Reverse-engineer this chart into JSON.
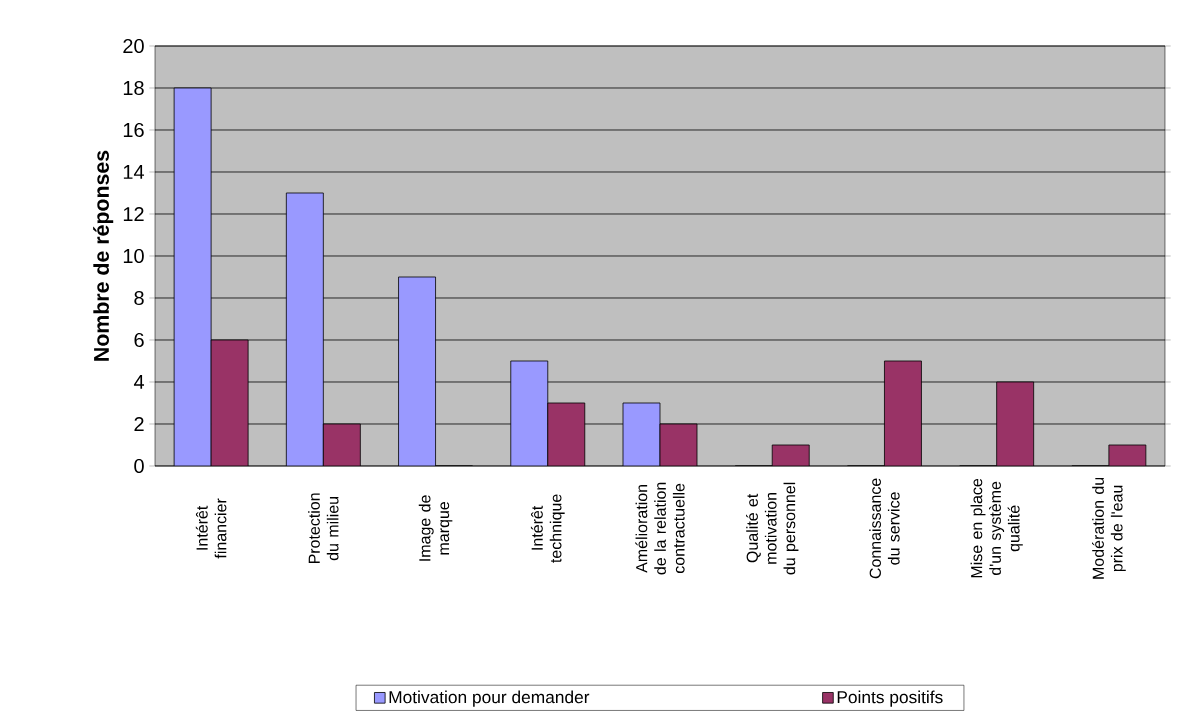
{
  "chart_data": {
    "type": "bar",
    "ylabel": "Nombre de réponses",
    "categories": [
      "Intérêt financier",
      "Protection du milieu",
      "Image de marque",
      "Intérêt technique",
      "Amélioration de la relation contractuelle",
      "Qualité et motivation du personnel",
      "Connaissance du service",
      "Mise en place d'un système qualité",
      "Modération du prix de l'eau"
    ],
    "series": [
      {
        "name": "Motivation pour demander",
        "color": "#9999ff",
        "values": [
          18,
          13,
          9,
          5,
          3,
          0,
          0,
          0,
          0
        ]
      },
      {
        "name": "Points positifs",
        "color": "#993366",
        "values": [
          6,
          2,
          0,
          3,
          2,
          1,
          5,
          4,
          1
        ]
      }
    ],
    "ylim": [
      0,
      20
    ],
    "yticks": [
      0,
      2,
      4,
      6,
      8,
      10,
      12,
      14,
      16,
      18,
      20
    ],
    "grid": "y",
    "legend": "bottom"
  }
}
